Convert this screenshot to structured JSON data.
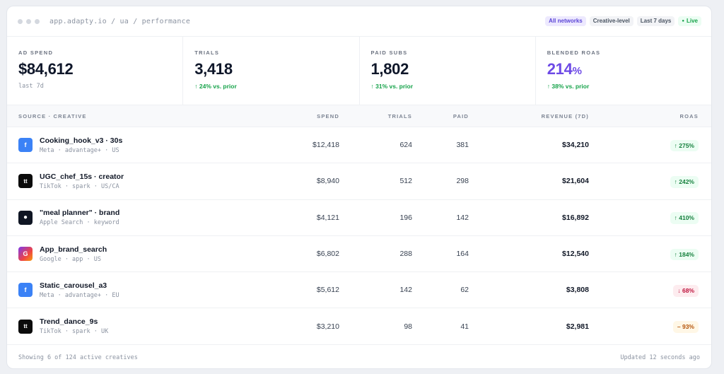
{
  "window": {
    "url": "app.adapty.io / ua / performance",
    "badges": [
      {
        "label": "All networks",
        "style": "active"
      },
      {
        "label": "Creative-level",
        "style": "plain"
      },
      {
        "label": "Last 7 days",
        "style": "plain"
      },
      {
        "label": "Live",
        "style": "live"
      }
    ]
  },
  "kpis": [
    {
      "label": "AD SPEND",
      "value": "$84,612",
      "unit": "",
      "sub": "last 7d",
      "sub_style": "muted"
    },
    {
      "label": "TRIALS",
      "value": "3,418",
      "unit": "",
      "sub": "↑ 24% vs. prior",
      "sub_style": "up"
    },
    {
      "label": "PAID SUBS",
      "value": "1,802",
      "unit": "",
      "sub": "↑ 31% vs. prior",
      "sub_style": "up"
    },
    {
      "label": "BLENDED ROAS",
      "value": "214",
      "unit": "%",
      "sub": "↑ 38% vs. prior",
      "sub_style": "up"
    }
  ],
  "table": {
    "headers": {
      "source": "SOURCE · CREATIVE",
      "spend": "SPEND",
      "trials": "TRIALS",
      "paid": "PAID",
      "revenue": "REVENUE (7D)",
      "roas": "ROAS"
    },
    "rows": [
      {
        "icon": "meta-icon",
        "icon_glyph": "f",
        "icon_style": "meta",
        "name": "Cooking_hook_v3 · 30s",
        "meta": "Meta · advantage+ · US",
        "spend": "$12,418",
        "trials": "624",
        "paid": "381",
        "revenue": "$34,210",
        "roas": "↑ 275%",
        "roas_style": "up"
      },
      {
        "icon": "tiktok-icon",
        "icon_glyph": "tt",
        "icon_style": "tiktok",
        "name": "UGC_chef_15s · creator",
        "meta": "TikTok · spark · US/CA",
        "spend": "$8,940",
        "trials": "512",
        "paid": "298",
        "revenue": "$21,604",
        "roas": "↑ 242%",
        "roas_style": "up"
      },
      {
        "icon": "apple-icon",
        "icon_glyph": "●",
        "icon_style": "apple",
        "name": "\"meal planner\" · brand",
        "meta": "Apple Search · keyword",
        "spend": "$4,121",
        "trials": "196",
        "paid": "142",
        "revenue": "$16,892",
        "roas": "↑ 410%",
        "roas_style": "up"
      },
      {
        "icon": "google-icon",
        "icon_glyph": "G",
        "icon_style": "google",
        "name": "App_brand_search",
        "meta": "Google · app · US",
        "spend": "$6,802",
        "trials": "288",
        "paid": "164",
        "revenue": "$12,540",
        "roas": "↑ 184%",
        "roas_style": "up"
      },
      {
        "icon": "meta-icon",
        "icon_glyph": "f",
        "icon_style": "meta",
        "name": "Static_carousel_a3",
        "meta": "Meta · advantage+ · EU",
        "spend": "$5,612",
        "trials": "142",
        "paid": "62",
        "revenue": "$3,808",
        "roas": "↓ 68%",
        "roas_style": "down"
      },
      {
        "icon": "tiktok-icon",
        "icon_glyph": "tt",
        "icon_style": "tiktok",
        "name": "Trend_dance_9s",
        "meta": "TikTok · spark · UK",
        "spend": "$3,210",
        "trials": "98",
        "paid": "41",
        "revenue": "$2,981",
        "roas": "– 93%",
        "roas_style": "flat"
      }
    ]
  },
  "footer": {
    "left": "Showing 6 of 124 active creatives",
    "right": "Updated 12 seconds ago"
  }
}
